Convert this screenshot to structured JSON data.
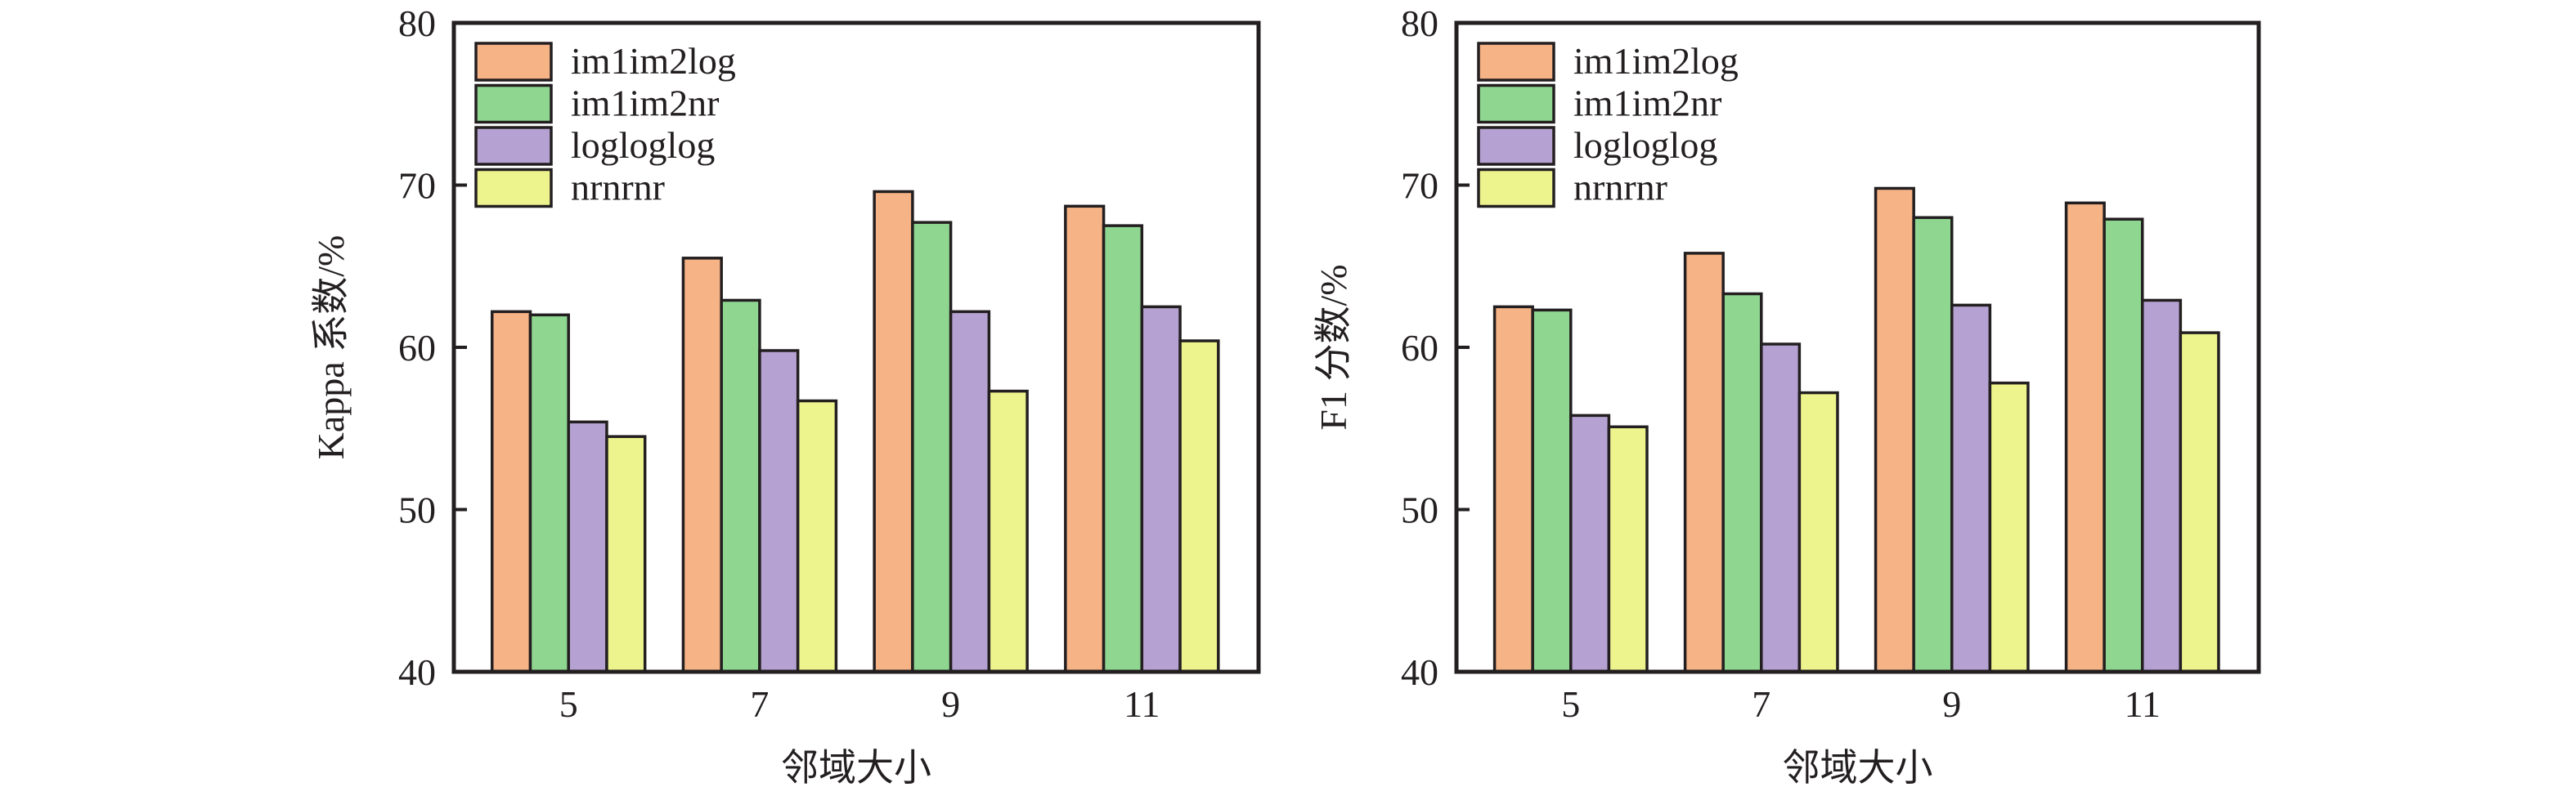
{
  "chart_data": [
    {
      "type": "bar",
      "title": "",
      "xlabel": "邻域大小",
      "ylabel": "Kappa 系数/%",
      "ylim": [
        40,
        80
      ],
      "yticks": [
        "40",
        "50",
        "60",
        "70",
        "80"
      ],
      "categories": [
        "5",
        "7",
        "9",
        "11"
      ],
      "grid": false,
      "legend_position": "top-left",
      "series": [
        {
          "name": "im1im2log",
          "color": "#f6b386",
          "values": [
            62.2,
            65.5,
            69.6,
            68.7
          ]
        },
        {
          "name": "im1im2nr",
          "color": "#8fd690",
          "values": [
            62.0,
            62.9,
            67.7,
            67.5
          ]
        },
        {
          "name": "logloglog",
          "color": "#b5a2d2",
          "values": [
            55.4,
            59.8,
            62.2,
            62.5
          ]
        },
        {
          "name": "nrnrnr",
          "color": "#eef48d",
          "values": [
            54.5,
            56.7,
            57.3,
            60.4
          ]
        }
      ]
    },
    {
      "type": "bar",
      "title": "",
      "xlabel": "邻域大小",
      "ylabel": "F1 分数/%",
      "ylim": [
        40,
        80
      ],
      "yticks": [
        "40",
        "50",
        "60",
        "70",
        "80"
      ],
      "categories": [
        "5",
        "7",
        "9",
        "11"
      ],
      "grid": false,
      "legend_position": "top-left",
      "series": [
        {
          "name": "im1im2log",
          "color": "#f6b386",
          "values": [
            62.5,
            65.8,
            69.8,
            68.9
          ]
        },
        {
          "name": "im1im2nr",
          "color": "#8fd690",
          "values": [
            62.3,
            63.3,
            68.0,
            67.9
          ]
        },
        {
          "name": "logloglog",
          "color": "#b5a2d2",
          "values": [
            55.8,
            60.2,
            62.6,
            62.9
          ]
        },
        {
          "name": "nrnrnr",
          "color": "#eef48d",
          "values": [
            55.1,
            57.2,
            57.8,
            60.9
          ]
        }
      ]
    }
  ]
}
